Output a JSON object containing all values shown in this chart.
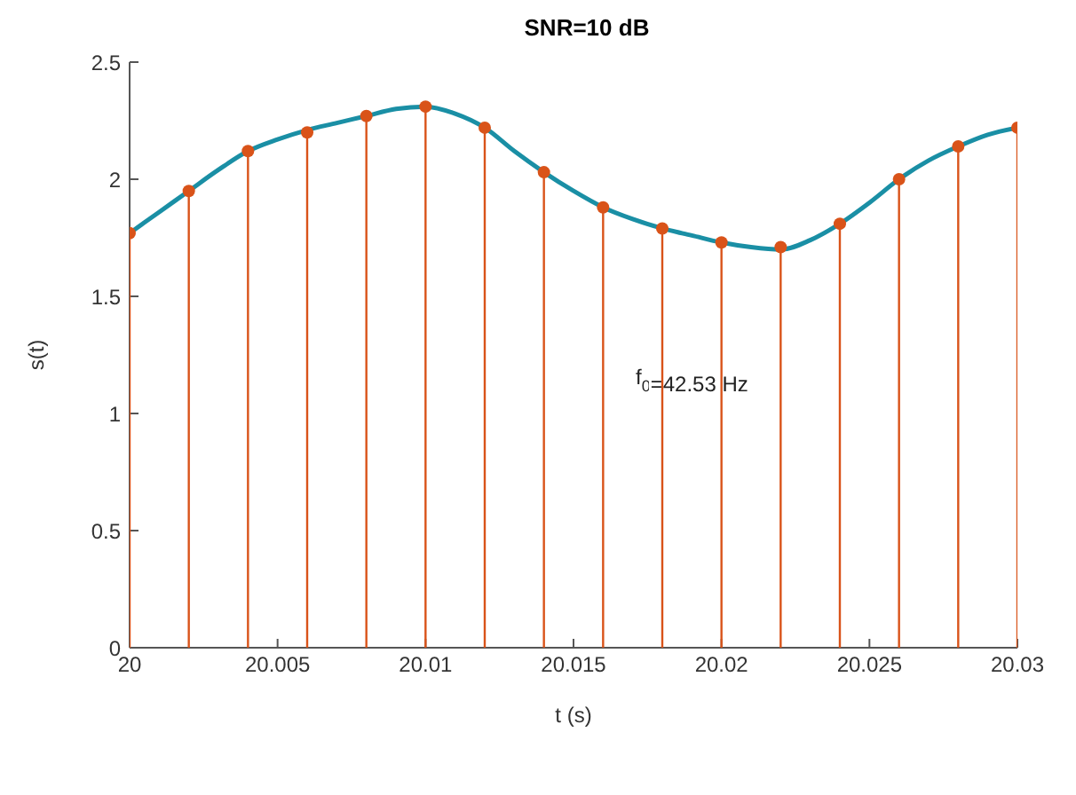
{
  "chart_data": {
    "type": "line",
    "title": "SNR=10 dB",
    "xlabel": "t (s)",
    "ylabel": "s(t)",
    "xlim": [
      20,
      20.03
    ],
    "xticks": [
      20,
      20.005,
      20.01,
      20.015,
      20.02,
      20.025,
      20.03
    ],
    "ylim": [
      0,
      2.5
    ],
    "yticks": [
      0,
      0.5,
      1,
      1.5,
      2,
      2.5
    ],
    "grid": false,
    "annotations": [
      "f$_{0}$=42.53 Hz"
    ],
    "series": [
      {
        "color": "#1a8fa5",
        "x": [
          20,
          20.001,
          20.002,
          20.003,
          20.004,
          20.005,
          20.006,
          20.007,
          20.008,
          20.009,
          20.01,
          20.011,
          20.012,
          20.013,
          20.014,
          20.015,
          20.016,
          20.017,
          20.018,
          20.019,
          20.02,
          20.021,
          20.022,
          20.023,
          20.024,
          20.025,
          20.026,
          20.027,
          20.028,
          20.029,
          20.03
        ],
        "values": [
          1.77,
          1.86,
          1.95,
          2.04,
          2.12,
          2.17,
          2.21,
          2.24,
          2.27,
          2.3,
          2.31,
          2.28,
          2.22,
          2.12,
          2.03,
          1.95,
          1.88,
          1.83,
          1.79,
          1.76,
          1.73,
          1.71,
          1.7,
          1.74,
          1.81,
          1.9,
          2.0,
          2.08,
          2.14,
          2.19,
          2.22
        ]
      },
      {
        "type": "lollipop",
        "color": "#d95319",
        "x": [
          20,
          20.002,
          20.004,
          20.006,
          20.008,
          20.01,
          20.012,
          20.014,
          20.016,
          20.018,
          20.02,
          20.022,
          20.024,
          20.026,
          20.028,
          20.03
        ],
        "values": [
          1.77,
          1.95,
          2.12,
          2.2,
          2.27,
          2.31,
          2.22,
          2.03,
          1.88,
          1.79,
          1.73,
          1.71,
          1.81,
          2.0,
          2.14,
          2.22
        ]
      }
    ]
  }
}
